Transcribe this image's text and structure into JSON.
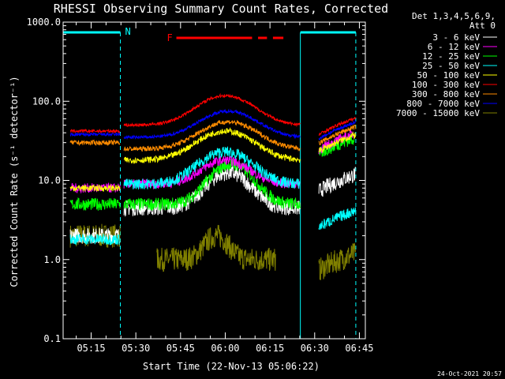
{
  "chart_data": {
    "type": "line",
    "title": "RHESSI Observing Summary Count Rates, Corrected",
    "xlabel": "Start Time (22-Nov-13 05:06:22)",
    "ylabel": "Corrected Count Rate (s⁻¹ detector⁻¹)",
    "yscale": "log",
    "ylim": [
      0.1,
      1000
    ],
    "xlim_minutes": [
      305.6,
      407.0
    ],
    "x_ticks": [
      "05:15",
      "05:30",
      "05:45",
      "06:00",
      "06:15",
      "06:30",
      "06:45"
    ],
    "x_tick_minutes": [
      315,
      330,
      345,
      360,
      375,
      390,
      405
    ],
    "y_ticks": [
      "0.1",
      "1.0",
      "10.0",
      "100.0",
      "1000.0"
    ],
    "y_tick_values": [
      0.1,
      1,
      10,
      100,
      1000
    ],
    "legend_header": [
      "Det 1,3,4,5,6,9,",
      "Att 0"
    ],
    "legend_placement": "right",
    "footer_date": "24-Oct-2021 20:57",
    "flags": {
      "night_label": "N",
      "flare_label": "F",
      "night_intervals_minutes": [
        [
          305.6,
          324.8
        ],
        [
          385.2,
          403.8
        ]
      ],
      "flare_intervals_minutes": [
        [
          343.6,
          369.0
        ],
        [
          371.0,
          374.0
        ],
        [
          376.0,
          379.5
        ]
      ],
      "night_color": "#00ffff",
      "flare_color": "#ff0000"
    },
    "data_gaps_minutes": [
      [
        305.6,
        308.0
      ],
      [
        324.8,
        326.0
      ],
      [
        385.2,
        391.4
      ],
      [
        403.8,
        407.0
      ]
    ],
    "series": [
      {
        "name": "3 - 6 keV",
        "color": "#ffffff",
        "base": 4.5,
        "peak": 12.5,
        "peak_min": 361,
        "width": 9,
        "noise": 0.1,
        "edge_start": 2.0,
        "edge_end": 12
      },
      {
        "name": "6 - 12 keV",
        "color": "#ff00ff",
        "base": 9,
        "peak": 18,
        "peak_min": 360,
        "width": 10,
        "noise": 0.06,
        "edge_start": 8,
        "edge_end": 40
      },
      {
        "name": "12 - 25 keV",
        "color": "#00ff00",
        "base": 5,
        "peak": 16,
        "peak_min": 362,
        "width": 9,
        "noise": 0.08,
        "edge_start": 5,
        "edge_end": 35
      },
      {
        "name": "25 - 50 keV",
        "color": "#00ffff",
        "base": 9,
        "peak": 23,
        "peak_min": 360,
        "width": 11,
        "noise": 0.07,
        "edge_start": 1.8,
        "edge_end": 4.2
      },
      {
        "name": "50 - 100 keV",
        "color": "#ffff00",
        "base": 18,
        "peak": 42,
        "peak_min": 360,
        "width": 12,
        "noise": 0.04,
        "edge_start": 8,
        "edge_end": 38
      },
      {
        "name": "100 - 300 keV",
        "color": "#ff0000",
        "base": 50,
        "peak": 118,
        "peak_min": 360,
        "width": 12,
        "noise": 0.02,
        "edge_start": 42,
        "edge_end": 62
      },
      {
        "name": "300 - 800 keV",
        "color": "#ff8c00",
        "base": 25,
        "peak": 55,
        "peak_min": 361,
        "width": 12,
        "noise": 0.03,
        "edge_start": 30,
        "edge_end": 48
      },
      {
        "name": "800 - 7000 keV",
        "color": "#0000ff",
        "base": 35,
        "peak": 75,
        "peak_min": 361,
        "width": 12,
        "noise": 0.02,
        "edge_start": 38,
        "edge_end": 55
      },
      {
        "name": "7000 - 15000 keV",
        "color": "#808000",
        "base": 1.0,
        "peak": 2.0,
        "peak_min": 357,
        "width": 5,
        "noise": 0.15,
        "edge_start": 2.0,
        "edge_end": 1.2
      }
    ]
  }
}
